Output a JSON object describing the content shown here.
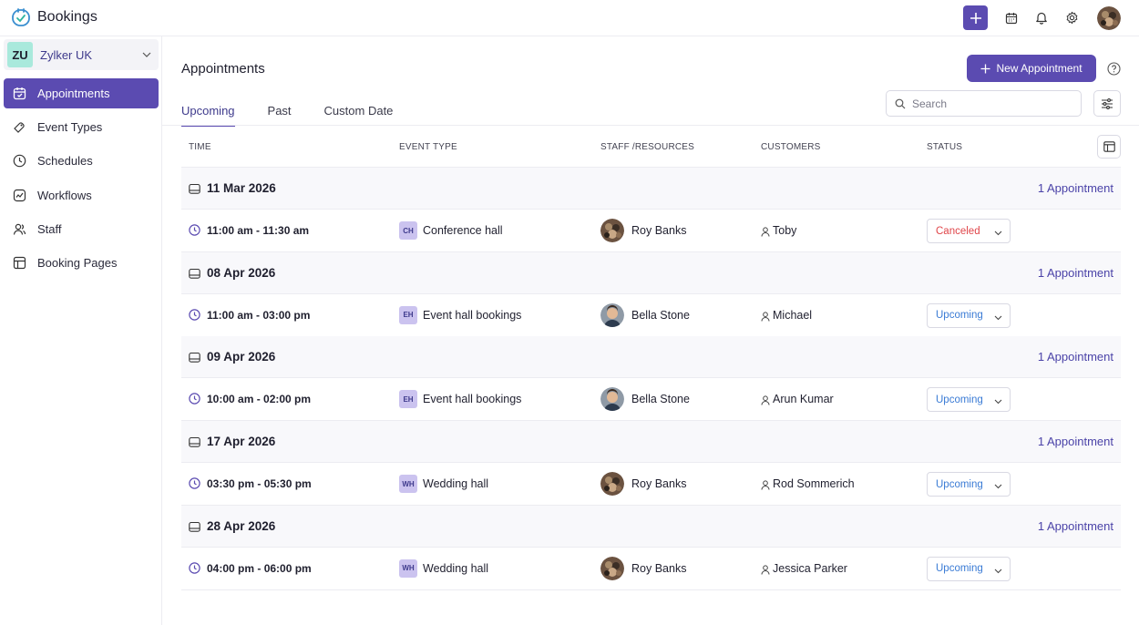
{
  "app": {
    "name": "Bookings"
  },
  "org": {
    "badge": "ZU",
    "name": "Zylker UK"
  },
  "sidebar": {
    "items": [
      {
        "label": "Appointments",
        "icon": "calendar-check-icon",
        "active": true
      },
      {
        "label": "Event Types",
        "icon": "tag-icon",
        "active": false
      },
      {
        "label": "Schedules",
        "icon": "clock-icon",
        "active": false
      },
      {
        "label": "Workflows",
        "icon": "workflow-icon",
        "active": false
      },
      {
        "label": "Staff",
        "icon": "users-icon",
        "active": false
      },
      {
        "label": "Booking Pages",
        "icon": "layout-icon",
        "active": false
      }
    ]
  },
  "header": {
    "title": "Appointments",
    "new_button": "New Appointment",
    "search_placeholder": "Search"
  },
  "tabs": [
    {
      "label": "Upcoming",
      "active": true
    },
    {
      "label": "Past",
      "active": false
    },
    {
      "label": "Custom Date",
      "active": false
    }
  ],
  "table": {
    "columns": [
      "TIME",
      "EVENT TYPE",
      "STAFF /RESOURCES",
      "CUSTOMERS",
      "STATUS"
    ],
    "groups": [
      {
        "date": "11 Mar 2026",
        "count": "1 Appointment",
        "rows": [
          {
            "time": "11:00 am - 11:30 am",
            "event_badge": "CH",
            "event": "Conference hall",
            "staff": "Roy Banks",
            "customer": "Toby",
            "status": "Canceled"
          }
        ]
      },
      {
        "date": "08 Apr 2026",
        "count": "1 Appointment",
        "rows": [
          {
            "time": "11:00 am - 03:00 pm",
            "event_badge": "EH",
            "event": "Event hall bookings",
            "staff": "Bella Stone",
            "customer": "Michael",
            "status": "Upcoming"
          }
        ]
      },
      {
        "date": "09 Apr 2026",
        "count": "1 Appointment",
        "rows": [
          {
            "time": "10:00 am - 02:00 pm",
            "event_badge": "EH",
            "event": "Event hall bookings",
            "staff": "Bella Stone",
            "customer": "Arun Kumar",
            "status": "Upcoming"
          }
        ]
      },
      {
        "date": "17 Apr 2026",
        "count": "1 Appointment",
        "rows": [
          {
            "time": "03:30 pm - 05:30 pm",
            "event_badge": "WH",
            "event": "Wedding hall",
            "staff": "Roy Banks",
            "customer": "Rod Sommerich",
            "status": "Upcoming"
          }
        ]
      },
      {
        "date": "28 Apr 2026",
        "count": "1 Appointment",
        "rows": [
          {
            "time": "04:00 pm - 06:00 pm",
            "event_badge": "WH",
            "event": "Wedding hall",
            "staff": "Roy Banks",
            "customer": "Jessica Parker",
            "status": "Upcoming"
          }
        ]
      }
    ]
  },
  "colors": {
    "accent": "#5b4bb1",
    "canceled": "#e0464a",
    "upcoming": "#3a7bd5",
    "org_badge": "#a9e9dc"
  }
}
